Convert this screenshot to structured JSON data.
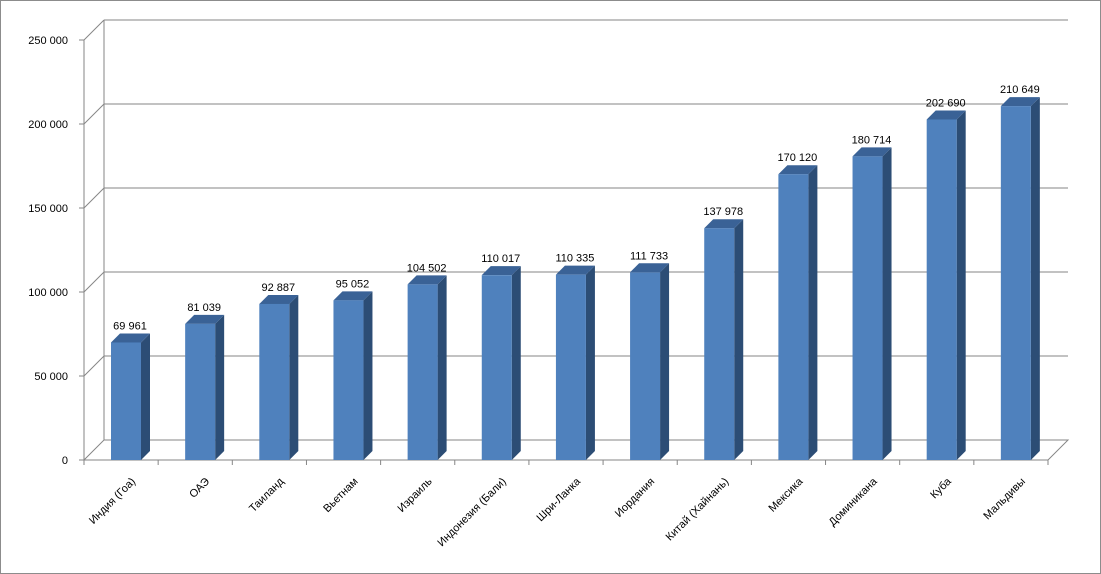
{
  "chart_data": {
    "type": "bar",
    "title": "",
    "xlabel": "",
    "ylabel": "",
    "ylim": [
      0,
      250000
    ],
    "yticks": [
      0,
      50000,
      100000,
      150000,
      200000,
      250000
    ],
    "ytick_labels": [
      "0",
      "50 000",
      "100 000",
      "150 000",
      "200 000",
      "250 000"
    ],
    "grid": true,
    "legend": "none",
    "style": "3d-column",
    "categories": [
      "Индия (Гоа)",
      "ОАЭ",
      "Таиланд",
      "Вьетнам",
      "Израиль",
      "Индонезия (Бали)",
      "Шри-Ланка",
      "Иордания",
      "Китай (Хайнань)",
      "Мексика",
      "Доминикана",
      "Куба",
      "Мальдивы"
    ],
    "values": [
      69961,
      81039,
      92887,
      95052,
      104502,
      110017,
      110335,
      111733,
      137978,
      170120,
      180714,
      202690,
      210649
    ],
    "value_labels": [
      "69 961",
      "81 039",
      "92 887",
      "95 052",
      "104 502",
      "110 017",
      "110 335",
      "111 733",
      "137 978",
      "170 120",
      "180 714",
      "202 690",
      "210 649"
    ],
    "colors": {
      "bar_front": "#4f81bd",
      "bar_side": "#2c4d75",
      "bar_top": "#3a6296",
      "grid": "#868686",
      "wall": "#ffffff"
    }
  }
}
